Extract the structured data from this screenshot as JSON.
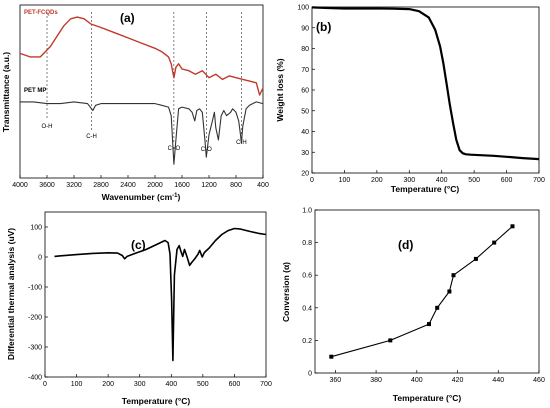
{
  "figure": {
    "panels": {
      "a": {
        "label": "(a)",
        "xlabel": "Wavenumber (cm",
        "xlabel_sup": "-1",
        "xlabel_end": ")",
        "ylabel": "Transmittance (a.u.)"
      },
      "b": {
        "label": "(b)",
        "xlabel": "Temperature (°C)",
        "ylabel": "Weight loss (%)"
      },
      "c": {
        "label": "(c)",
        "xlabel": "Temperature (°C)",
        "ylabel": "Differential thermal analysis (uV)"
      },
      "d": {
        "label": "(d)",
        "xlabel": "Temperature (°C)",
        "ylabel": "Conversion (α)"
      }
    }
  },
  "chart_data": [
    {
      "id": "a",
      "type": "line",
      "title": "(a)",
      "xlabel": "Wavenumber (cm-1)",
      "ylabel": "Transmittance (a.u.)",
      "xlim": [
        4000,
        400
      ],
      "x_reversed": true,
      "xticks": [
        4000,
        3600,
        3200,
        2800,
        2400,
        2000,
        1600,
        1200,
        800,
        400
      ],
      "y_ticks_shown": false,
      "grid": false,
      "series": [
        {
          "name": "PET-FCQDs",
          "color": "#c0392b",
          "x": [
            4000,
            3850,
            3700,
            3550,
            3450,
            3350,
            3250,
            3150,
            3050,
            2950,
            2800,
            2600,
            2400,
            2200,
            2000,
            1900,
            1800,
            1760,
            1720,
            1690,
            1650,
            1600,
            1500,
            1400,
            1300,
            1200,
            1100,
            1000,
            900,
            800,
            700,
            600,
            500,
            450,
            400
          ],
          "y": [
            0.72,
            0.7,
            0.7,
            0.76,
            0.82,
            0.88,
            0.92,
            0.93,
            0.92,
            0.89,
            0.87,
            0.84,
            0.81,
            0.78,
            0.75,
            0.73,
            0.7,
            0.66,
            0.58,
            0.64,
            0.66,
            0.63,
            0.62,
            0.6,
            0.62,
            0.58,
            0.6,
            0.57,
            0.59,
            0.58,
            0.57,
            0.56,
            0.55,
            0.48,
            0.52
          ]
        },
        {
          "name": "PET MP",
          "color": "#333333",
          "x": [
            4000,
            3800,
            3600,
            3400,
            3200,
            3000,
            2960,
            2920,
            2880,
            2800,
            2600,
            2400,
            2200,
            2000,
            1900,
            1800,
            1760,
            1720,
            1690,
            1650,
            1600,
            1500,
            1450,
            1410,
            1380,
            1340,
            1300,
            1260,
            1240,
            1200,
            1150,
            1120,
            1100,
            1060,
            1020,
            980,
            940,
            880,
            850,
            800,
            760,
            730,
            720,
            700,
            650,
            600,
            500,
            400
          ],
          "y": [
            0.44,
            0.44,
            0.43,
            0.43,
            0.44,
            0.43,
            0.41,
            0.39,
            0.42,
            0.43,
            0.43,
            0.43,
            0.43,
            0.43,
            0.42,
            0.41,
            0.36,
            0.08,
            0.22,
            0.4,
            0.41,
            0.4,
            0.38,
            0.33,
            0.39,
            0.4,
            0.38,
            0.22,
            0.12,
            0.25,
            0.33,
            0.38,
            0.29,
            0.22,
            0.36,
            0.39,
            0.36,
            0.38,
            0.4,
            0.38,
            0.33,
            0.24,
            0.2,
            0.3,
            0.4,
            0.42,
            0.44,
            0.43
          ]
        }
      ],
      "annotations": [
        {
          "text": "O-H",
          "x": 3600
        },
        {
          "text": "C-H",
          "x": 2940
        },
        {
          "text": "C=O",
          "x": 1720
        },
        {
          "text": "C-O",
          "x": 1240
        },
        {
          "text": "C-H",
          "x": 720
        }
      ]
    },
    {
      "id": "b",
      "type": "line",
      "title": "(b)",
      "xlabel": "Temperature (°C)",
      "ylabel": "Weight loss (%)",
      "xlim": [
        0,
        700
      ],
      "ylim": [
        20,
        100
      ],
      "xticks": [
        0,
        100,
        200,
        300,
        400,
        500,
        600,
        700
      ],
      "yticks": [
        20,
        30,
        40,
        50,
        60,
        70,
        80,
        90,
        100
      ],
      "grid": false,
      "series": [
        {
          "name": "",
          "color": "#000000",
          "x": [
            0,
            50,
            100,
            150,
            200,
            250,
            300,
            330,
            360,
            380,
            395,
            405,
            415,
            425,
            435,
            445,
            455,
            465,
            475,
            490,
            520,
            560,
            600,
            650,
            700
          ],
          "y": [
            99.8,
            99.5,
            99.3,
            99.3,
            99.3,
            99.2,
            99.0,
            98.0,
            95.0,
            89.0,
            81.0,
            73.0,
            63.0,
            53.0,
            44.0,
            36.0,
            31.0,
            29.5,
            29.0,
            28.8,
            28.6,
            28.3,
            27.8,
            27.2,
            26.7
          ]
        }
      ]
    },
    {
      "id": "c",
      "type": "line",
      "title": "(c)",
      "xlabel": "Temperature (°C)",
      "ylabel": "Differential thermal analysis (uV)",
      "xlim": [
        0,
        700
      ],
      "ylim": [
        -400,
        150
      ],
      "xticks": [
        0,
        100,
        200,
        300,
        400,
        500,
        600,
        700
      ],
      "yticks": [
        100,
        0,
        -100,
        -200,
        -300,
        -400
      ],
      "grid": false,
      "series": [
        {
          "name": "",
          "color": "#000000",
          "x": [
            30,
            50,
            100,
            150,
            200,
            230,
            245,
            252,
            260,
            280,
            320,
            360,
            380,
            390,
            396,
            401,
            405,
            410,
            418,
            425,
            430,
            436,
            442,
            450,
            458,
            465,
            475,
            485,
            490,
            498,
            505,
            520,
            540,
            560,
            580,
            600,
            620,
            650,
            680,
            700
          ],
          "y": [
            2,
            4,
            8,
            12,
            14,
            13,
            5,
            -6,
            2,
            10,
            25,
            45,
            55,
            48,
            10,
            -140,
            -345,
            -60,
            25,
            38,
            20,
            2,
            25,
            0,
            -28,
            -18,
            -5,
            10,
            22,
            0,
            15,
            30,
            55,
            75,
            88,
            95,
            93,
            85,
            78,
            75
          ]
        }
      ]
    },
    {
      "id": "d",
      "type": "line",
      "title": "(d)",
      "xlabel": "Temperature (°C)",
      "ylabel": "Conversion (α)",
      "xlim": [
        350,
        460
      ],
      "ylim": [
        0,
        1.0
      ],
      "xticks": [
        360,
        380,
        400,
        420,
        440,
        460
      ],
      "yticks": [
        0,
        0.2,
        0.4,
        0.6,
        0.8,
        1.0
      ],
      "grid": false,
      "markers": true,
      "series": [
        {
          "name": "",
          "color": "#000000",
          "x": [
            358,
            387,
            406,
            410,
            416,
            418,
            429,
            438,
            447
          ],
          "y": [
            0.1,
            0.2,
            0.3,
            0.4,
            0.5,
            0.6,
            0.7,
            0.8,
            0.9
          ]
        }
      ]
    }
  ]
}
